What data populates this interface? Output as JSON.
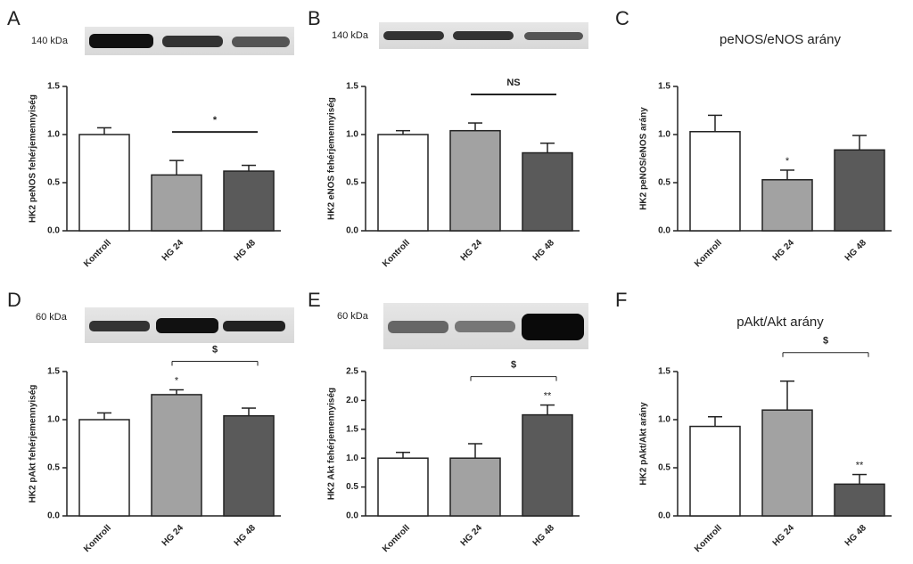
{
  "chart_data": [
    {
      "type": "bar",
      "panel": "A",
      "blot_label": "140 kDa",
      "ylabel": "HK2 peNOS fehérjemennyiség",
      "categories": [
        "Kontroll",
        "HG 24",
        "HG 48"
      ],
      "values": [
        1.0,
        0.58,
        0.62
      ],
      "errors": [
        0.07,
        0.15,
        0.06
      ],
      "colors": [
        "#ffffff",
        "#a2a2a2",
        "#5a5a5a"
      ],
      "ylim": [
        0,
        1.5
      ],
      "yticks": [
        {
          "value": 0,
          "label": "0.0"
        },
        0.5,
        {
          "value": 1,
          "label": "1.0"
        },
        1.5
      ],
      "comparison": {
        "from": "HG 24",
        "to": "HG 48",
        "label": "*",
        "style": "bar"
      }
    },
    {
      "type": "bar",
      "panel": "B",
      "blot_label": "140 kDa",
      "ylabel": "HK2 eNOS fehérjemennyiség",
      "categories": [
        "Kontroll",
        "HG 24",
        "HG 48"
      ],
      "values": [
        1.0,
        1.04,
        0.81
      ],
      "errors": [
        0.04,
        0.08,
        0.1
      ],
      "colors": [
        "#ffffff",
        "#a2a2a2",
        "#5a5a5a"
      ],
      "ylim": [
        0,
        1.5
      ],
      "yticks": [
        {
          "value": 0,
          "label": "0.0"
        },
        0.5,
        {
          "value": 1,
          "label": "1.0"
        },
        1.5
      ],
      "comparison": {
        "from": "HG 24",
        "to": "HG 48",
        "label": "NS",
        "style": "bar"
      }
    },
    {
      "type": "bar",
      "panel": "C",
      "title": "peNOS/eNOS arány",
      "ylabel": "HK2 peNOS/eNOS arány",
      "categories": [
        "Kontroll",
        "HG 24",
        "HG 48"
      ],
      "values": [
        1.03,
        0.53,
        0.84
      ],
      "errors": [
        0.17,
        0.1,
        0.15
      ],
      "value_annotations": [
        null,
        "*",
        null
      ],
      "colors": [
        "#ffffff",
        "#a2a2a2",
        "#5a5a5a"
      ],
      "ylim": [
        0,
        1.5
      ],
      "yticks": [
        {
          "value": 0,
          "label": "0.0"
        },
        0.5,
        {
          "value": 1,
          "label": "1.0"
        },
        1.5
      ]
    },
    {
      "type": "bar",
      "panel": "D",
      "blot_label": "60 kDa",
      "ylabel": "HK2 pAkt fehérjemennyiség",
      "categories": [
        "Kontroll",
        "HG 24",
        "HG 48"
      ],
      "values": [
        1.0,
        1.26,
        1.04
      ],
      "errors": [
        0.07,
        0.05,
        0.08
      ],
      "value_annotations": [
        null,
        "*",
        null
      ],
      "colors": [
        "#ffffff",
        "#a2a2a2",
        "#5a5a5a"
      ],
      "ylim": [
        0,
        1.5
      ],
      "yticks": [
        {
          "value": 0,
          "label": "0.0"
        },
        0.5,
        {
          "value": 1,
          "label": "1.0"
        },
        1.5
      ],
      "comparison": {
        "from": "HG 24",
        "to": "HG 48",
        "label": "$",
        "style": "bracket"
      }
    },
    {
      "type": "bar",
      "panel": "E",
      "blot_label": "60 kDa",
      "ylabel": "HK2 Akt fehérjemennyiség",
      "categories": [
        "Kontroll",
        "HG 24",
        "HG 48"
      ],
      "values": [
        1.0,
        1.0,
        1.75
      ],
      "errors": [
        0.1,
        0.25,
        0.17
      ],
      "value_annotations": [
        null,
        null,
        "**"
      ],
      "colors": [
        "#ffffff",
        "#a2a2a2",
        "#5a5a5a"
      ],
      "ylim": [
        0,
        2.5
      ],
      "yticks": [
        {
          "value": 0,
          "label": "0.0"
        },
        0.5,
        {
          "value": 1,
          "label": "1.0"
        },
        1.5,
        {
          "value": 2,
          "label": "2.0"
        },
        2.5
      ],
      "comparison": {
        "from": "HG 24",
        "to": "HG 48",
        "label": "$",
        "style": "bracket"
      }
    },
    {
      "type": "bar",
      "panel": "F",
      "title": "pAkt/Akt arány",
      "ylabel": "HK2 pAkt/Akt arány",
      "categories": [
        "Kontroll",
        "HG 24",
        "HG 48"
      ],
      "values": [
        0.93,
        1.1,
        0.33
      ],
      "errors": [
        0.1,
        0.3,
        0.1
      ],
      "value_annotations": [
        null,
        null,
        "**"
      ],
      "colors": [
        "#ffffff",
        "#a2a2a2",
        "#5a5a5a"
      ],
      "ylim": [
        0,
        1.5
      ],
      "yticks": [
        {
          "value": 0,
          "label": "0.0"
        },
        0.5,
        {
          "value": 1,
          "label": "1.0"
        },
        1.5
      ],
      "comparison": {
        "from": "HG 24",
        "to": "HG 48",
        "label": "$",
        "style": "bracket"
      }
    }
  ]
}
